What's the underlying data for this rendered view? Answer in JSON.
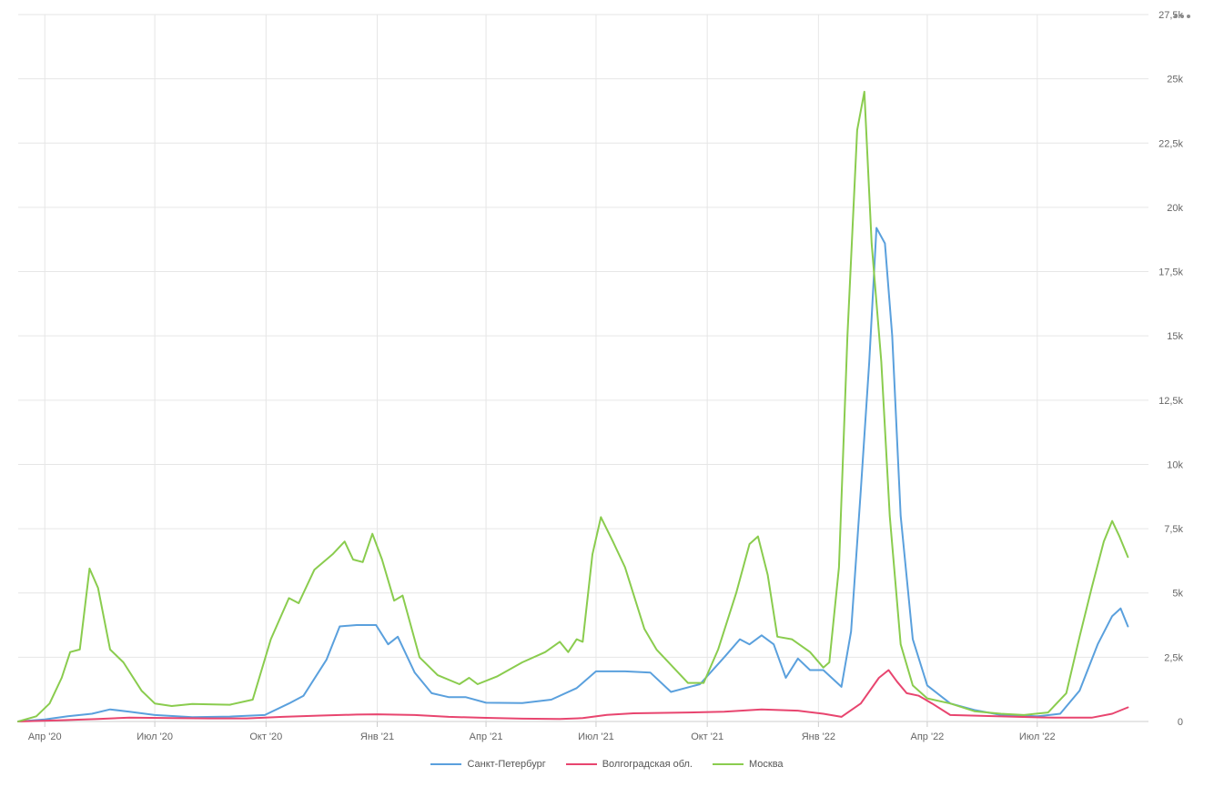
{
  "chart_data": {
    "type": "line",
    "title": "",
    "xlabel": "",
    "ylabel": "",
    "x_range": [
      "2020-03-10",
      "2022-10-01"
    ],
    "ylim": [
      0,
      27500
    ],
    "y_ticks": [
      0,
      2500,
      5000,
      7500,
      10000,
      12500,
      15000,
      17500,
      20000,
      22500,
      25000,
      27500
    ],
    "y_tick_labels": [
      "0",
      "2,5k",
      "5k",
      "7,5k",
      "10k",
      "12,5k",
      "15k",
      "17,5k",
      "20k",
      "22,5k",
      "25k",
      "27,5k"
    ],
    "x_ticks": [
      {
        "date": "2020-04-01",
        "label": "Апр '20"
      },
      {
        "date": "2020-07-01",
        "label": "Июл '20"
      },
      {
        "date": "2020-10-01",
        "label": "Окт '20"
      },
      {
        "date": "2021-01-01",
        "label": "Янв '21"
      },
      {
        "date": "2021-04-01",
        "label": "Апр '21"
      },
      {
        "date": "2021-07-01",
        "label": "Июл '21"
      },
      {
        "date": "2021-10-01",
        "label": "Окт '21"
      },
      {
        "date": "2022-01-01",
        "label": "Янв '22"
      },
      {
        "date": "2022-04-01",
        "label": "Апр '22"
      },
      {
        "date": "2022-07-01",
        "label": "Июл '22"
      }
    ],
    "grid": true,
    "legend_position": "bottom",
    "series": [
      {
        "name": "Санкт-Петербург",
        "color": "#5aa0dd",
        "points": [
          [
            "2020-03-10",
            0
          ],
          [
            "2020-04-01",
            80
          ],
          [
            "2020-04-20",
            200
          ],
          [
            "2020-05-10",
            300
          ],
          [
            "2020-05-25",
            470
          ],
          [
            "2020-06-10",
            380
          ],
          [
            "2020-07-01",
            250
          ],
          [
            "2020-08-01",
            170
          ],
          [
            "2020-09-01",
            190
          ],
          [
            "2020-09-30",
            250
          ],
          [
            "2020-10-20",
            700
          ],
          [
            "2020-11-01",
            1000
          ],
          [
            "2020-11-20",
            2400
          ],
          [
            "2020-12-01",
            3700
          ],
          [
            "2020-12-15",
            3750
          ],
          [
            "2020-12-31",
            3750
          ],
          [
            "2021-01-10",
            3000
          ],
          [
            "2021-01-18",
            3300
          ],
          [
            "2021-02-01",
            1900
          ],
          [
            "2021-02-15",
            1100
          ],
          [
            "2021-03-01",
            950
          ],
          [
            "2021-03-15",
            950
          ],
          [
            "2021-04-01",
            730
          ],
          [
            "2021-05-01",
            720
          ],
          [
            "2021-05-25",
            850
          ],
          [
            "2021-06-15",
            1300
          ],
          [
            "2021-07-01",
            1950
          ],
          [
            "2021-07-25",
            1950
          ],
          [
            "2021-08-15",
            1900
          ],
          [
            "2021-09-01",
            1150
          ],
          [
            "2021-09-25",
            1450
          ],
          [
            "2021-10-15",
            2500
          ],
          [
            "2021-10-28",
            3200
          ],
          [
            "2021-11-05",
            3000
          ],
          [
            "2021-11-15",
            3350
          ],
          [
            "2021-11-25",
            3000
          ],
          [
            "2021-12-05",
            1700
          ],
          [
            "2021-12-15",
            2450
          ],
          [
            "2021-12-25",
            2000
          ],
          [
            "2022-01-05",
            2000
          ],
          [
            "2022-01-20",
            1350
          ],
          [
            "2022-01-28",
            3500
          ],
          [
            "2022-02-05",
            9000
          ],
          [
            "2022-02-12",
            14000
          ],
          [
            "2022-02-18",
            19200
          ],
          [
            "2022-02-25",
            18600
          ],
          [
            "2022-03-03",
            15000
          ],
          [
            "2022-03-10",
            8000
          ],
          [
            "2022-03-20",
            3200
          ],
          [
            "2022-04-01",
            1400
          ],
          [
            "2022-04-20",
            700
          ],
          [
            "2022-05-10",
            450
          ],
          [
            "2022-06-01",
            250
          ],
          [
            "2022-07-01",
            200
          ],
          [
            "2022-07-20",
            300
          ],
          [
            "2022-08-05",
            1200
          ],
          [
            "2022-08-20",
            3000
          ],
          [
            "2022-09-01",
            4100
          ],
          [
            "2022-09-08",
            4400
          ],
          [
            "2022-09-14",
            3700
          ]
        ]
      },
      {
        "name": "Волгоградская обл.",
        "color": "#e8456f",
        "points": [
          [
            "2020-03-10",
            0
          ],
          [
            "2020-04-15",
            50
          ],
          [
            "2020-05-15",
            100
          ],
          [
            "2020-06-10",
            150
          ],
          [
            "2020-07-15",
            130
          ],
          [
            "2020-08-15",
            120
          ],
          [
            "2020-09-15",
            120
          ],
          [
            "2020-10-15",
            180
          ],
          [
            "2020-11-15",
            230
          ],
          [
            "2020-12-15",
            270
          ],
          [
            "2021-01-01",
            280
          ],
          [
            "2021-02-01",
            250
          ],
          [
            "2021-03-01",
            180
          ],
          [
            "2021-04-01",
            140
          ],
          [
            "2021-05-01",
            110
          ],
          [
            "2021-06-01",
            100
          ],
          [
            "2021-06-20",
            130
          ],
          [
            "2021-07-10",
            260
          ],
          [
            "2021-08-01",
            320
          ],
          [
            "2021-09-15",
            350
          ],
          [
            "2021-10-15",
            380
          ],
          [
            "2021-11-15",
            470
          ],
          [
            "2021-12-15",
            420
          ],
          [
            "2022-01-05",
            300
          ],
          [
            "2022-01-20",
            180
          ],
          [
            "2022-02-05",
            700
          ],
          [
            "2022-02-20",
            1700
          ],
          [
            "2022-02-28",
            2000
          ],
          [
            "2022-03-07",
            1550
          ],
          [
            "2022-03-15",
            1100
          ],
          [
            "2022-03-25",
            1000
          ],
          [
            "2022-04-05",
            700
          ],
          [
            "2022-04-20",
            250
          ],
          [
            "2022-05-15",
            220
          ],
          [
            "2022-06-15",
            180
          ],
          [
            "2022-07-15",
            150
          ],
          [
            "2022-08-15",
            150
          ],
          [
            "2022-09-01",
            300
          ],
          [
            "2022-09-14",
            550
          ]
        ]
      },
      {
        "name": "Москва",
        "color": "#8acc4e",
        "points": [
          [
            "2020-03-10",
            0
          ],
          [
            "2020-03-25",
            200
          ],
          [
            "2020-04-05",
            700
          ],
          [
            "2020-04-15",
            1700
          ],
          [
            "2020-04-22",
            2700
          ],
          [
            "2020-04-30",
            2800
          ],
          [
            "2020-05-08",
            5950
          ],
          [
            "2020-05-15",
            5200
          ],
          [
            "2020-05-25",
            2800
          ],
          [
            "2020-06-05",
            2300
          ],
          [
            "2020-06-20",
            1200
          ],
          [
            "2020-07-01",
            700
          ],
          [
            "2020-07-15",
            600
          ],
          [
            "2020-08-01",
            680
          ],
          [
            "2020-09-01",
            650
          ],
          [
            "2020-09-20",
            850
          ],
          [
            "2020-10-05",
            3200
          ],
          [
            "2020-10-20",
            4800
          ],
          [
            "2020-10-28",
            4600
          ],
          [
            "2020-11-10",
            5900
          ],
          [
            "2020-11-25",
            6500
          ],
          [
            "2020-12-05",
            7000
          ],
          [
            "2020-12-12",
            6300
          ],
          [
            "2020-12-20",
            6200
          ],
          [
            "2020-12-28",
            7300
          ],
          [
            "2021-01-05",
            6300
          ],
          [
            "2021-01-15",
            4700
          ],
          [
            "2021-01-22",
            4900
          ],
          [
            "2021-02-05",
            2500
          ],
          [
            "2021-02-20",
            1800
          ],
          [
            "2021-03-10",
            1450
          ],
          [
            "2021-03-18",
            1700
          ],
          [
            "2021-03-25",
            1450
          ],
          [
            "2021-04-10",
            1750
          ],
          [
            "2021-05-01",
            2300
          ],
          [
            "2021-05-20",
            2700
          ],
          [
            "2021-06-01",
            3100
          ],
          [
            "2021-06-08",
            2700
          ],
          [
            "2021-06-15",
            3200
          ],
          [
            "2021-06-20",
            3100
          ],
          [
            "2021-06-28",
            6500
          ],
          [
            "2021-07-05",
            7950
          ],
          [
            "2021-07-15",
            7000
          ],
          [
            "2021-07-25",
            6000
          ],
          [
            "2021-08-10",
            3600
          ],
          [
            "2021-08-20",
            2800
          ],
          [
            "2021-09-01",
            2200
          ],
          [
            "2021-09-15",
            1500
          ],
          [
            "2021-09-28",
            1500
          ],
          [
            "2021-10-10",
            2800
          ],
          [
            "2021-10-25",
            5000
          ],
          [
            "2021-11-05",
            6900
          ],
          [
            "2021-11-12",
            7200
          ],
          [
            "2021-11-20",
            5700
          ],
          [
            "2021-11-28",
            3300
          ],
          [
            "2021-12-10",
            3200
          ],
          [
            "2021-12-25",
            2700
          ],
          [
            "2022-01-05",
            2100
          ],
          [
            "2022-01-10",
            2300
          ],
          [
            "2022-01-18",
            6000
          ],
          [
            "2022-01-25",
            15000
          ],
          [
            "2022-02-02",
            23000
          ],
          [
            "2022-02-08",
            24500
          ],
          [
            "2022-02-14",
            18600
          ],
          [
            "2022-02-22",
            14000
          ],
          [
            "2022-03-01",
            8000
          ],
          [
            "2022-03-10",
            3000
          ],
          [
            "2022-03-20",
            1400
          ],
          [
            "2022-04-01",
            900
          ],
          [
            "2022-04-20",
            700
          ],
          [
            "2022-05-10",
            400
          ],
          [
            "2022-06-01",
            300
          ],
          [
            "2022-06-20",
            250
          ],
          [
            "2022-07-10",
            350
          ],
          [
            "2022-07-25",
            1100
          ],
          [
            "2022-08-05",
            3300
          ],
          [
            "2022-08-15",
            5200
          ],
          [
            "2022-08-25",
            7000
          ],
          [
            "2022-09-01",
            7800
          ],
          [
            "2022-09-07",
            7200
          ],
          [
            "2022-09-14",
            6400
          ]
        ]
      }
    ]
  }
}
